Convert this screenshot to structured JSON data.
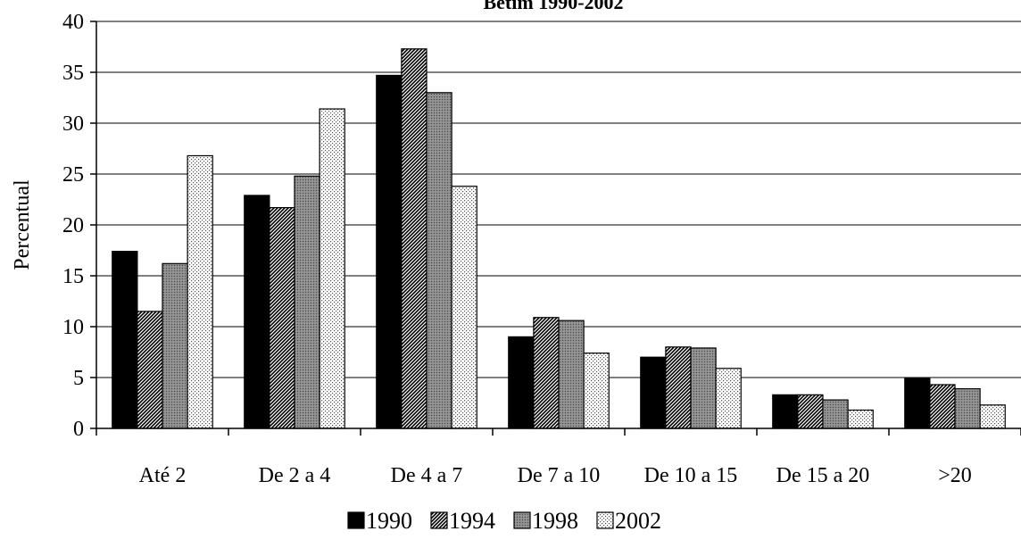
{
  "chart_data": {
    "type": "bar",
    "title": "Betim 1990-2002",
    "xlabel": "",
    "ylabel": "Percentual",
    "ylim": [
      0,
      40
    ],
    "yticks": [
      0,
      5,
      10,
      15,
      20,
      25,
      30,
      35,
      40
    ],
    "grid": true,
    "legend": "bottom",
    "categories": [
      "Até 2",
      "De 2 a 4",
      "De 4 a 7",
      "De 7 a 10",
      "De 10 a 15",
      "De 15 a 20",
      ">20"
    ],
    "series": [
      {
        "name": "1990",
        "pattern": "solid-black",
        "values": [
          17.4,
          22.9,
          34.7,
          9.0,
          7.0,
          3.3,
          4.9
        ]
      },
      {
        "name": "1994",
        "pattern": "dense-hatch",
        "values": [
          11.5,
          21.7,
          37.3,
          10.9,
          8.0,
          3.3,
          4.3
        ]
      },
      {
        "name": "1998",
        "pattern": "gray",
        "values": [
          16.2,
          24.8,
          33.0,
          10.6,
          7.9,
          2.8,
          3.9
        ]
      },
      {
        "name": "2002",
        "pattern": "light-dots",
        "values": [
          26.8,
          31.4,
          23.8,
          7.4,
          5.9,
          1.8,
          2.3
        ]
      }
    ]
  }
}
